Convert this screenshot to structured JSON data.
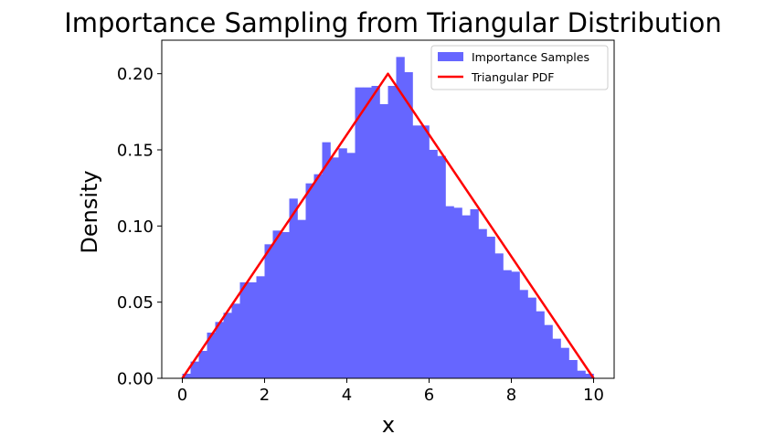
{
  "chart_data": {
    "type": "bar",
    "title": "Importance Sampling from Triangular Distribution",
    "xlabel": "x",
    "ylabel": "Density",
    "xlim": [
      -0.5,
      10.5
    ],
    "ylim": [
      0,
      0.222
    ],
    "xticks": [
      0,
      2,
      4,
      6,
      8,
      10
    ],
    "xtick_labels": [
      "0",
      "2",
      "4",
      "6",
      "8",
      "10"
    ],
    "yticks": [
      0.0,
      0.05,
      0.1,
      0.15,
      0.2
    ],
    "ytick_labels": [
      "0.00",
      "0.05",
      "0.10",
      "0.15",
      "0.20"
    ],
    "grid": false,
    "legend": {
      "location": "top-right",
      "entries": [
        {
          "label": "Importance Samples",
          "kind": "patch",
          "color": "#6666ff"
        },
        {
          "label": "Triangular PDF",
          "kind": "line",
          "color": "#ff0000"
        }
      ]
    },
    "series": [
      {
        "name": "Importance Samples",
        "type": "histogram",
        "color": "#6666ff",
        "bin_start": 0.0,
        "bin_width": 0.2,
        "values": [
          0.003,
          0.011,
          0.018,
          0.03,
          0.037,
          0.043,
          0.049,
          0.063,
          0.063,
          0.067,
          0.088,
          0.097,
          0.096,
          0.118,
          0.104,
          0.128,
          0.134,
          0.155,
          0.145,
          0.151,
          0.148,
          0.191,
          0.191,
          0.192,
          0.18,
          0.192,
          0.211,
          0.201,
          0.166,
          0.166,
          0.15,
          0.146,
          0.113,
          0.112,
          0.107,
          0.111,
          0.098,
          0.093,
          0.082,
          0.071,
          0.07,
          0.058,
          0.053,
          0.044,
          0.035,
          0.026,
          0.02,
          0.012,
          0.005,
          0.003
        ]
      },
      {
        "name": "Triangular PDF",
        "type": "line",
        "color": "#ff0000",
        "x": [
          0,
          5,
          10
        ],
        "y": [
          0,
          0.2,
          0
        ]
      }
    ]
  }
}
